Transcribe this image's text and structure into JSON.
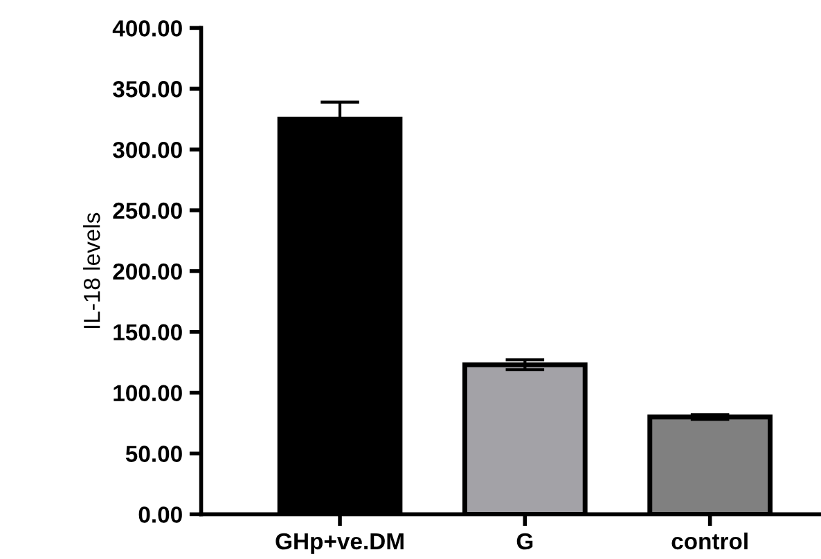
{
  "chart_data": {
    "type": "bar",
    "ylabel": "IL-18 levels",
    "categories": [
      "GHp+ve.DM",
      "G",
      "control"
    ],
    "values": [
      325,
      123,
      80
    ],
    "errors": [
      14,
      4,
      2
    ],
    "colors": [
      "#000000",
      "#a3a2a7",
      "#808080"
    ],
    "ylim": [
      0,
      400
    ],
    "yticks": [
      {
        "value": 0,
        "label": "0.00"
      },
      {
        "value": 50,
        "label": "50.00"
      },
      {
        "value": 100,
        "label": "100.00"
      },
      {
        "value": 150,
        "label": "150.00"
      },
      {
        "value": 200,
        "label": "200.00"
      },
      {
        "value": 250,
        "label": "250.00"
      },
      {
        "value": 300,
        "label": "300.00"
      },
      {
        "value": 350,
        "label": "350.00"
      },
      {
        "value": 400,
        "label": "400.00"
      }
    ],
    "grid": false,
    "legend": false
  }
}
